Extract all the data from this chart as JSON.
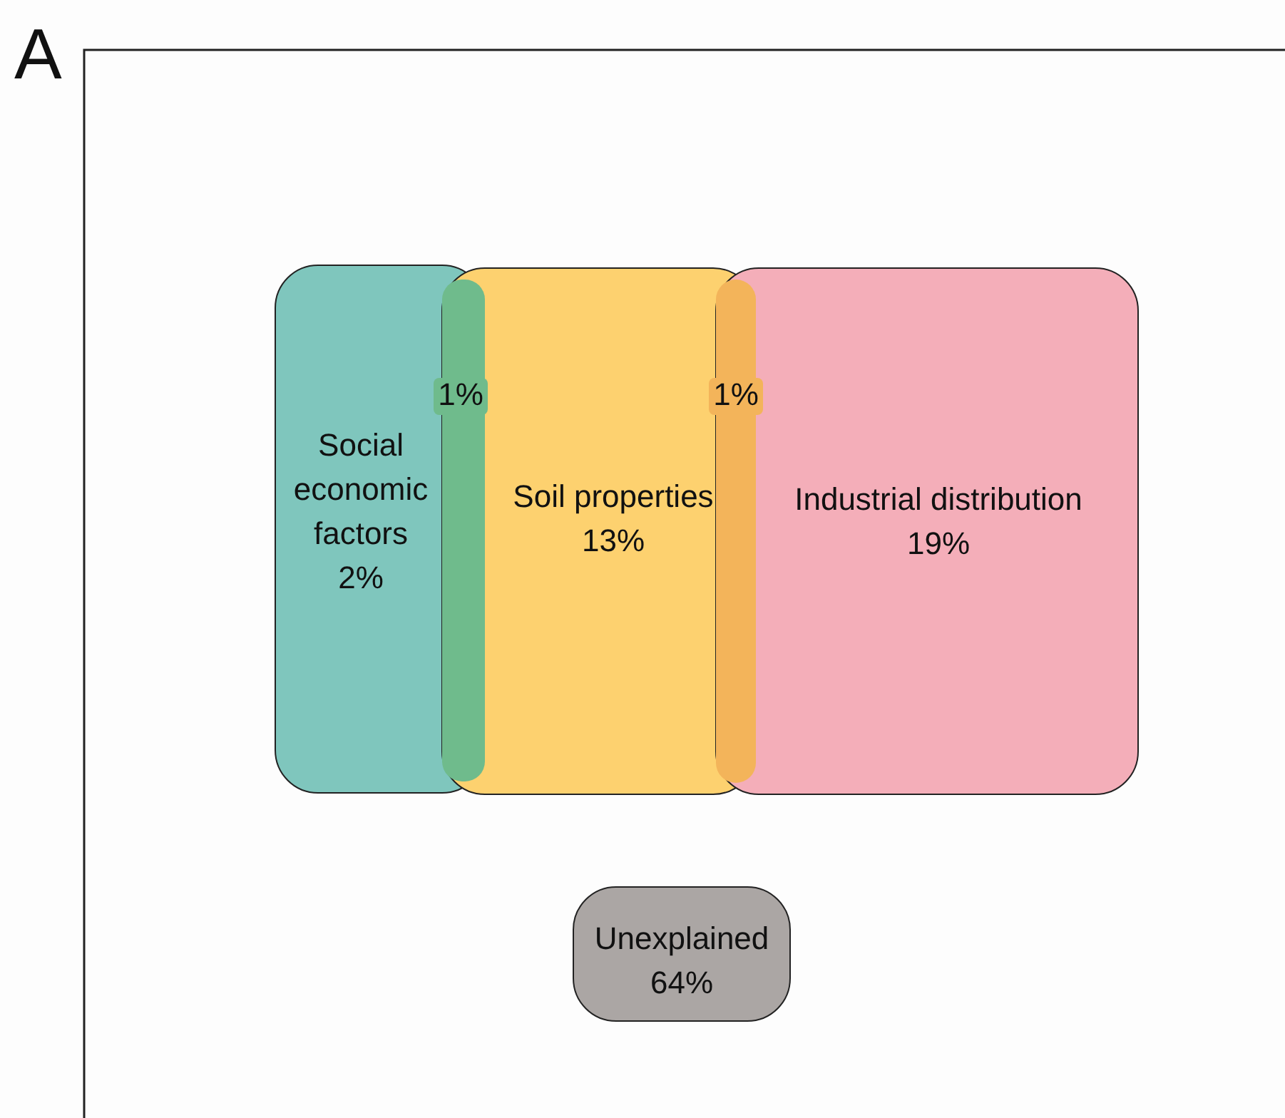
{
  "chart_data": {
    "type": "other",
    "title": "A",
    "categories": [
      "Social economic factors",
      "Soil properties",
      "Industrial distribution",
      "Unexplained"
    ],
    "values": [
      2,
      13,
      19,
      64
    ],
    "value_labels": [
      "2%",
      "13%",
      "19%",
      "64%"
    ],
    "colors": [
      "#7fc6bd",
      "#fdd16f",
      "#f4aeb9",
      "#aba6a4"
    ],
    "annotations": [
      "1%",
      "1%"
    ]
  }
}
